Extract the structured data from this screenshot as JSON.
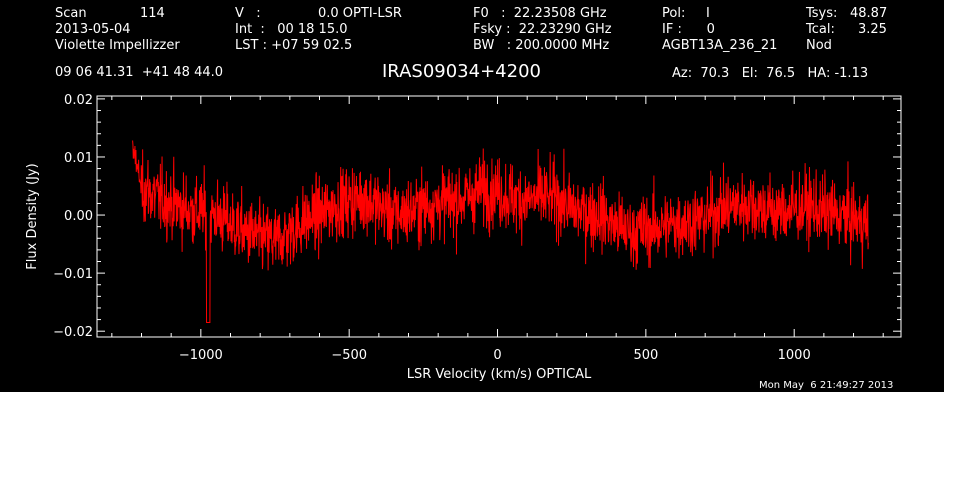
{
  "header": {
    "col1": {
      "scan_label": "Scan",
      "scan_value": "114",
      "date": "2013-05-04",
      "observer": "Violette Impellizzer",
      "coords": "09 06 41.31  +41 48 44.0"
    },
    "col2": {
      "v_label": "V   :",
      "v_value": "0.0 OPTI-LSR",
      "int_line": "Int  :   00 18 15.0",
      "lst_line": "LST : +07 59 02.5"
    },
    "col3": {
      "f0_line": "F0   :  22.23508 GHz",
      "fsky_line": "Fsky :  22.23290 GHz",
      "bw_line": "BW   : 200.0000 MHz"
    },
    "col4": {
      "pol_line": "Pol:     I",
      "if_line": "IF :      0",
      "project": "AGBT13A_236_21"
    },
    "col5": {
      "tsys_label": "Tsys:",
      "tsys_value": "48.87",
      "tcal_label": "Tcal:",
      "tcal_value": "3.25",
      "mode": "Nod"
    },
    "source": "IRAS09034+4200",
    "az_el_ha": "Az:  70.3   El:  76.5   HA: -1.13"
  },
  "timestamp": "Mon May  6 21:49:27 2013",
  "colors": {
    "background": "#000000",
    "axes": "#ffffff",
    "trace": "#ff0000"
  },
  "chart_data": {
    "type": "line",
    "title": "IRAS09034+4200",
    "xlabel": "LSR Velocity (km/s) OPTICAL",
    "ylabel": "Flux Density (Jy)",
    "xlim": [
      -1350,
      1360
    ],
    "ylim": [
      -0.021,
      0.0205
    ],
    "xticks": [
      -1000,
      -500,
      0,
      500,
      1000
    ],
    "xtick_labels": [
      "−1000",
      "−500",
      "0",
      "500",
      "1000"
    ],
    "yticks": [
      -0.02,
      -0.01,
      0.0,
      0.01,
      0.02
    ],
    "ytick_labels": [
      "−0.02",
      "−0.01",
      "0.00",
      "0.01",
      "0.02"
    ],
    "grid": false,
    "legend": "none",
    "series": [
      {
        "x": [
          -1230,
          -1200,
          -1150,
          -1100,
          -1050,
          -1000,
          -950,
          -900,
          -850,
          -800,
          -750,
          -700,
          -650,
          -600,
          -550,
          -500,
          -450,
          -400,
          -350,
          -300,
          -250,
          -200,
          -150,
          -100,
          -50,
          0,
          50,
          100,
          150,
          200,
          250,
          300,
          350,
          400,
          450,
          500,
          550,
          600,
          650,
          700,
          750,
          800,
          850,
          900,
          950,
          1000,
          1050,
          1100,
          1150,
          1200,
          1250
        ],
        "y": [
          0.0115,
          0.005,
          0.003,
          0.002,
          0.001,
          0.0005,
          0.0,
          -0.0015,
          -0.003,
          -0.004,
          -0.0045,
          -0.003,
          -0.001,
          0.0,
          0.0015,
          0.0025,
          0.003,
          0.0015,
          0.0,
          0.0005,
          0.0015,
          0.002,
          0.0025,
          0.003,
          0.0045,
          0.004,
          0.003,
          0.0025,
          0.003,
          0.003,
          0.001,
          0.0005,
          0.0,
          -0.002,
          -0.003,
          -0.0025,
          -0.002,
          -0.0015,
          -0.001,
          -0.0005,
          0.001,
          0.0015,
          0.002,
          0.001,
          0.0005,
          0.001,
          0.0015,
          0.0005,
          0.0,
          -0.0005,
          -0.002
        ],
        "noise_rms_approx": 0.004
      }
    ]
  }
}
